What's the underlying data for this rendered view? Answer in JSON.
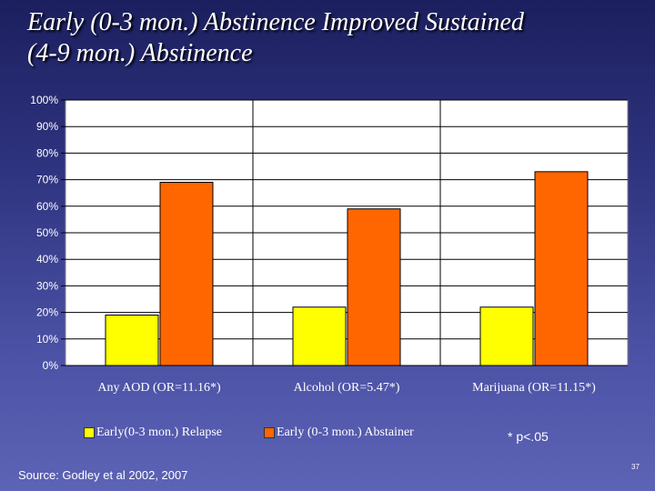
{
  "slide": {
    "title_line1": "Early (0-3 mon.) Abstinence Improved Sustained",
    "title_line2": "(4-9 mon.) Abstinence",
    "note": "* p<.05",
    "source": "Source: Godley et al 2002, 2007",
    "slide_number": "37"
  },
  "chart_data": {
    "type": "bar",
    "categories": [
      "Any AOD (OR=11.16*)",
      "Alcohol (OR=5.47*)",
      "Marijuana (OR=11.15*)"
    ],
    "series": [
      {
        "name": "Early(0-3 mon.) Relapse",
        "values": [
          19,
          22,
          22
        ],
        "labels": [
          "19%",
          "22%",
          "22%"
        ],
        "color": "#ffff00"
      },
      {
        "name": "Early (0-3 mon.) Abstainer",
        "values": [
          69,
          59,
          73
        ],
        "labels": [
          "69%",
          "59%",
          "73%"
        ],
        "color": "#ff6600"
      }
    ],
    "yticks": [
      "0%",
      "10%",
      "20%",
      "30%",
      "40%",
      "50%",
      "60%",
      "70%",
      "80%",
      "90%",
      "100%"
    ],
    "ylim": [
      0,
      100
    ],
    "grid": true,
    "legend_position": "bottom",
    "plot_background": "#ffffff"
  }
}
